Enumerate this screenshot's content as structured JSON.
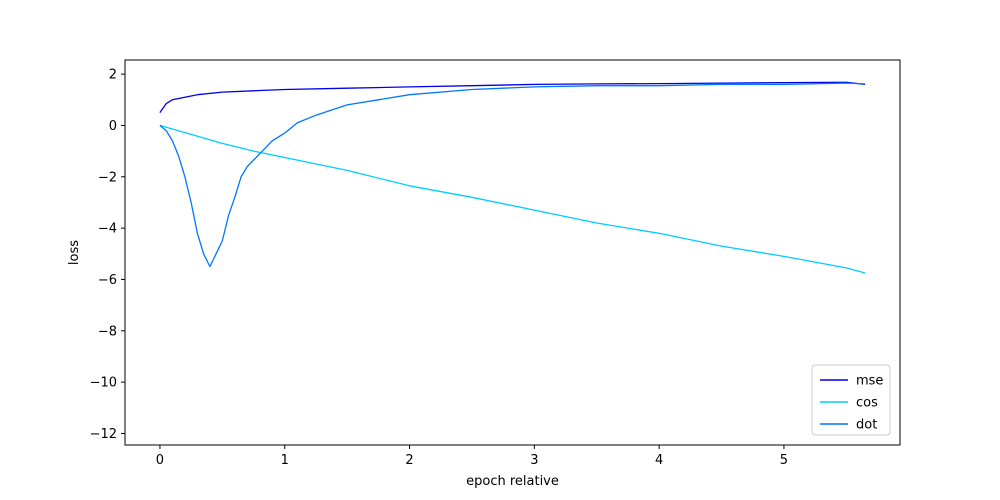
{
  "chart_data": {
    "type": "line",
    "title": "",
    "xlabel": "epoch relative",
    "ylabel": "loss",
    "xlim": [
      -0.28,
      5.93
    ],
    "ylim": [
      -12.45,
      2.55
    ],
    "xticks": [
      0,
      1,
      2,
      3,
      4,
      5
    ],
    "xtick_labels": [
      "0",
      "1",
      "2",
      "3",
      "4",
      "5"
    ],
    "yticks": [
      2,
      0,
      -2,
      -4,
      -6,
      -8,
      -10,
      -12
    ],
    "ytick_labels": [
      "2",
      "0",
      "−2",
      "−4",
      "−6",
      "−8",
      "−10",
      "−12"
    ],
    "grid": false,
    "legend_position": "lower-right",
    "series": [
      {
        "name": "mse",
        "color": "#0000ee",
        "x": [
          0,
          0.05,
          0.1,
          0.2,
          0.3,
          0.5,
          0.75,
          1.0,
          1.5,
          2.0,
          2.5,
          3.0,
          3.5,
          4.0,
          4.5,
          5.0,
          5.5,
          5.65
        ],
        "y": [
          0.5,
          0.85,
          1.0,
          1.1,
          1.2,
          1.3,
          1.35,
          1.4,
          1.45,
          1.5,
          1.55,
          1.6,
          1.62,
          1.63,
          1.65,
          1.67,
          1.68,
          1.6
        ]
      },
      {
        "name": "cos",
        "color": "#00ccff",
        "x": [
          0,
          0.25,
          0.5,
          0.75,
          1.0,
          1.5,
          2.0,
          2.5,
          3.0,
          3.5,
          4.0,
          4.5,
          5.0,
          5.5,
          5.65
        ],
        "y": [
          0.0,
          -0.35,
          -0.7,
          -1.0,
          -1.25,
          -1.75,
          -2.35,
          -2.8,
          -3.3,
          -3.8,
          -4.2,
          -4.7,
          -5.1,
          -5.55,
          -5.75
        ]
      },
      {
        "name": "dot",
        "color": "#0077ff",
        "x": [
          0,
          0.05,
          0.1,
          0.15,
          0.2,
          0.25,
          0.3,
          0.35,
          0.4,
          0.45,
          0.5,
          0.55,
          0.6,
          0.65,
          0.7,
          0.8,
          0.9,
          1.0,
          1.1,
          1.25,
          1.5,
          1.75,
          2.0,
          2.5,
          3.0,
          3.5,
          4.0,
          4.5,
          5.0,
          5.5,
          5.65
        ],
        "y": [
          0.0,
          -0.2,
          -0.6,
          -1.2,
          -2.0,
          -3.0,
          -4.2,
          -5.0,
          -5.5,
          -5.0,
          -4.5,
          -3.5,
          -2.8,
          -2.0,
          -1.6,
          -1.1,
          -0.6,
          -0.3,
          0.1,
          0.4,
          0.8,
          1.0,
          1.2,
          1.4,
          1.5,
          1.55,
          1.55,
          1.6,
          1.6,
          1.65,
          1.62
        ]
      }
    ]
  }
}
